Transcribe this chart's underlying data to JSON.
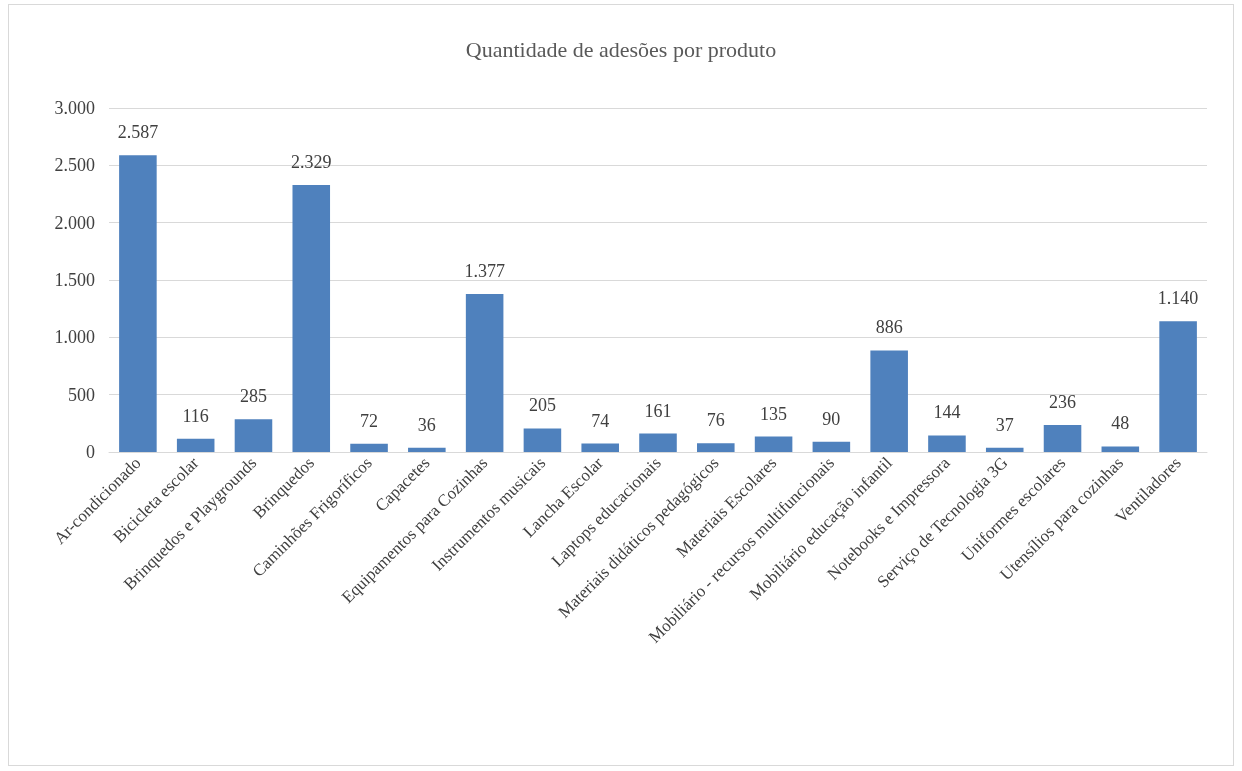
{
  "chart_data": {
    "type": "bar",
    "title": "Quantidade de adesões por produto",
    "categories": [
      "Ar-condicionado",
      "Bicicleta escolar",
      "Brinquedos e Playgrounds",
      "Brinquedos",
      "Caminhões Frigoríficos",
      "Capacetes",
      "Equipamentos para Cozinhas",
      "Instrumentos musicais",
      "Lancha Escolar",
      "Laptops educacionais",
      "Materiais didáticos pedagógicos",
      "Materiais Escolares",
      "Mobiliário - recursos multifuncionais",
      "Mobiliário educação infantil",
      "Notebooks e Impressora",
      "Serviço de Tecnologia 3G",
      "Uniformes escolares",
      "Utensílios para cozinhas",
      "Ventiladores"
    ],
    "values": [
      2587,
      116,
      285,
      2329,
      72,
      36,
      1377,
      205,
      74,
      161,
      76,
      135,
      90,
      886,
      144,
      37,
      236,
      48,
      1140
    ],
    "value_labels": [
      "2.587",
      "116",
      "285",
      "2.329",
      "72",
      "36",
      "1.377",
      "205",
      "74",
      "161",
      "76",
      "135",
      "90",
      "886",
      "144",
      "37",
      "236",
      "48",
      "1.140"
    ],
    "color": "#4f81bd",
    "ylim": [
      0,
      3000
    ],
    "yticks": [
      0,
      {
        "value": 500,
        "label": "500"
      },
      {
        "value": 1000,
        "label": "1.000"
      },
      {
        "value": 1500,
        "label": "1.500"
      },
      {
        "value": 2000,
        "label": "2.000"
      },
      {
        "value": 2500,
        "label": "2.500"
      },
      {
        "value": 3000,
        "label": "3.000"
      }
    ],
    "grid": "y"
  }
}
